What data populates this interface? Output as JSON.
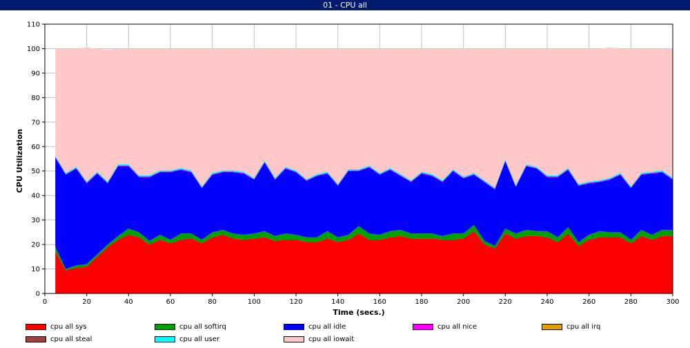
{
  "window": {
    "title": "01 - CPU all"
  },
  "chart_data": {
    "type": "area",
    "title": "",
    "xlabel": "Time (secs.)",
    "ylabel": "CPU Utilization",
    "xlim": [
      0,
      300
    ],
    "ylim": [
      0,
      110
    ],
    "xticks": [
      0,
      20,
      40,
      60,
      80,
      100,
      120,
      140,
      160,
      180,
      200,
      220,
      240,
      260,
      280,
      300
    ],
    "yticks": [
      0,
      10,
      20,
      30,
      40,
      50,
      60,
      70,
      80,
      90,
      100,
      110
    ],
    "grid": true,
    "stacked": true,
    "legend_position": "bottom",
    "x": [
      5,
      10,
      15,
      20,
      25,
      30,
      35,
      40,
      45,
      50,
      55,
      60,
      65,
      70,
      75,
      80,
      85,
      90,
      95,
      100,
      105,
      110,
      115,
      120,
      125,
      130,
      135,
      140,
      145,
      150,
      155,
      160,
      165,
      170,
      175,
      180,
      185,
      190,
      195,
      200,
      205,
      210,
      215,
      220,
      225,
      230,
      235,
      240,
      245,
      250,
      255,
      260,
      265,
      270,
      275,
      280,
      285,
      290,
      295,
      300
    ],
    "series": [
      {
        "name": "cpu all sys",
        "color": "#ff0000",
        "values": [
          17,
          9.5,
          10.5,
          11,
          15,
          19,
          22,
          24,
          23,
          20,
          22,
          20.5,
          22,
          22.5,
          20.5,
          23,
          24,
          22.5,
          22,
          22.5,
          23,
          21.5,
          22,
          22,
          21,
          21,
          22.5,
          21,
          22,
          24.5,
          22,
          22,
          23,
          23.5,
          22.5,
          22.5,
          22.5,
          22,
          22,
          22.5,
          25.5,
          20,
          18.5,
          24.5,
          22.5,
          23.5,
          23.5,
          23,
          21,
          24.5,
          19.5,
          22,
          23,
          23,
          23,
          20.5,
          23.5,
          22,
          23.5,
          23.5
        ]
      },
      {
        "name": "cpu all softirq",
        "color": "#00a000",
        "values": [
          2,
          0.5,
          1,
          1,
          1,
          1,
          1.5,
          2.5,
          2,
          1.5,
          2,
          1.5,
          2.5,
          2,
          1.5,
          2,
          2,
          2,
          2,
          2,
          2.5,
          2,
          2.5,
          2,
          2,
          2,
          3,
          2,
          2,
          3,
          2.5,
          2,
          2.5,
          2.5,
          2,
          2,
          2,
          1.5,
          2.5,
          2,
          2.5,
          1.5,
          1,
          2,
          2,
          2.5,
          2,
          2.5,
          2,
          2.5,
          1.5,
          2,
          2.5,
          2,
          2,
          1.5,
          2.5,
          2,
          2.5,
          2.5
        ]
      },
      {
        "name": "cpu all idle",
        "color": "#0000ff",
        "values": [
          36.5,
          38.5,
          39.5,
          33,
          33,
          25,
          28.5,
          25.5,
          22.5,
          26,
          25.5,
          27.5,
          26,
          25,
          21,
          23.5,
          23.5,
          25,
          25,
          22,
          28,
          23,
          26.5,
          25.5,
          23,
          25,
          23.5,
          21,
          26,
          22.5,
          27,
          24.5,
          25,
          22,
          21,
          24.5,
          23.5,
          22,
          25.5,
          22.5,
          20.5,
          24,
          23,
          27.5,
          19,
          26,
          25.5,
          22,
          24.5,
          23.5,
          23,
          21,
          20,
          21.5,
          23.5,
          21,
          22.5,
          25,
          23.5,
          20.5
        ]
      },
      {
        "name": "cpu all nice",
        "color": "#ff00ff",
        "values": [
          0.3,
          0.3,
          0.3,
          0.3,
          0.3,
          0.3,
          0.3,
          0.3,
          0.3,
          0.3,
          0.3,
          0.3,
          0.3,
          0.3,
          0.3,
          0.3,
          0.3,
          0.3,
          0.3,
          0.3,
          0.3,
          0.3,
          0.3,
          0.3,
          0.3,
          0.3,
          0.3,
          0.3,
          0.3,
          0.3,
          0.3,
          0.3,
          0.3,
          0.3,
          0.3,
          0.3,
          0.3,
          0.3,
          0.3,
          0.3,
          0.3,
          0.3,
          0.3,
          0.3,
          0.3,
          0.3,
          0.3,
          0.3,
          0.3,
          0.3,
          0.3,
          0.3,
          0.3,
          0.3,
          0.3,
          0.3,
          0.3,
          0.3,
          0.3,
          0.3
        ]
      },
      {
        "name": "cpu all irq",
        "color": "#e0a000",
        "values": [
          0,
          0,
          0,
          0,
          0,
          0,
          0,
          0,
          0,
          0,
          0,
          0,
          0,
          0,
          0,
          0,
          0,
          0,
          0,
          0,
          0,
          0,
          0,
          0,
          0,
          0,
          0,
          0,
          0,
          0,
          0,
          0,
          0,
          0,
          0,
          0,
          0,
          0,
          0,
          0,
          0,
          0,
          0,
          0,
          0,
          0,
          0,
          0,
          0,
          0,
          0,
          0,
          0,
          0,
          0,
          0,
          0,
          0,
          0,
          0
        ]
      },
      {
        "name": "cpu all steal",
        "color": "#a04040",
        "values": [
          0,
          0,
          0,
          0,
          0,
          0,
          0,
          0,
          0,
          0,
          0,
          0,
          0,
          0,
          0,
          0,
          0,
          0,
          0,
          0,
          0,
          0,
          0,
          0,
          0,
          0,
          0,
          0,
          0,
          0,
          0,
          0,
          0,
          0,
          0,
          0,
          0,
          0,
          0,
          0,
          0,
          0,
          0,
          0,
          0,
          0,
          0,
          0,
          0,
          0,
          0,
          0,
          0,
          0,
          0,
          0,
          0,
          0,
          0,
          0
        ]
      },
      {
        "name": "cpu all user",
        "color": "#00ffff",
        "values": [
          0.5,
          0.5,
          0.5,
          0.5,
          0.5,
          0.5,
          0.5,
          0.5,
          0.5,
          0.5,
          0.5,
          0.5,
          0.5,
          0.5,
          0.5,
          0.5,
          0.5,
          0.5,
          0.5,
          0.5,
          0.5,
          0.5,
          0.5,
          0.5,
          0.5,
          0.5,
          0.5,
          0.5,
          0.5,
          0.5,
          0.5,
          0.5,
          0.5,
          0.5,
          0.5,
          0.5,
          0.5,
          0.5,
          0.5,
          0.5,
          0.5,
          0.5,
          0.5,
          0.5,
          0.5,
          0.5,
          0.5,
          0.5,
          0.5,
          0.5,
          0.5,
          0.5,
          0.5,
          0.5,
          0.5,
          0.5,
          0.5,
          0.5,
          0.5,
          0.5
        ]
      },
      {
        "name": "cpu all iowait",
        "color": "#ffc8c8",
        "values": [
          43.7,
          50.7,
          48.2,
          54.7,
          50.2,
          53.7,
          47.2,
          47.2,
          51.7,
          51.7,
          49.7,
          49.7,
          48.7,
          49.7,
          56.2,
          50.7,
          49.7,
          49.7,
          50.2,
          52.7,
          45.7,
          52.7,
          48.2,
          49.7,
          53.2,
          51.2,
          50.2,
          55.2,
          49.2,
          49.2,
          47.7,
          50.7,
          48.7,
          51.2,
          53.7,
          50.2,
          51.2,
          53.7,
          49.2,
          52.2,
          50.7,
          53.7,
          56.7,
          45.2,
          55.7,
          47.2,
          48.2,
          51.7,
          51.7,
          48.7,
          55.2,
          54.2,
          53.7,
          53.2,
          50.7,
          56.2,
          50.7,
          50.2,
          49.7,
          52.7
        ]
      }
    ]
  }
}
